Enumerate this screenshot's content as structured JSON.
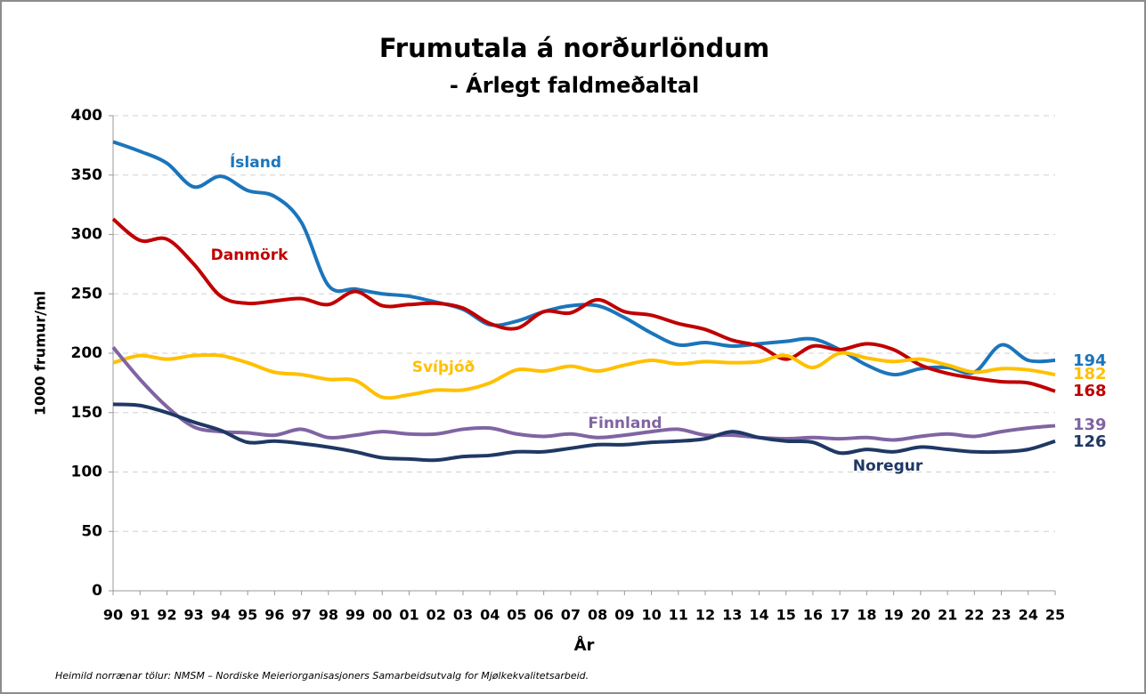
{
  "chart_data": {
    "type": "line",
    "title": "Frumutala á norðurlöndum",
    "subtitle": "- Árlegt faldmeðaltal",
    "y_label": "1000 frumur/ml",
    "x_label": "År",
    "footnote": "Heimild norrænar tölur: NMSM – Nordiske Meieriorganisasjoners Samarbeidsutvalg for Mjølkekvalitetsarbeid.",
    "categories": [
      "90",
      "91",
      "92",
      "93",
      "94",
      "95",
      "96",
      "97",
      "98",
      "99",
      "00",
      "01",
      "02",
      "03",
      "04",
      "05",
      "06",
      "07",
      "08",
      "09",
      "10",
      "11",
      "12",
      "13",
      "14",
      "15",
      "16",
      "17",
      "18",
      "19",
      "20",
      "21",
      "22",
      "23",
      "24",
      "25"
    ],
    "ylim": [
      0,
      400
    ],
    "yticks": [
      0,
      50,
      100,
      150,
      200,
      250,
      300,
      350,
      400
    ],
    "grid": true,
    "series": [
      {
        "name": "Ísland",
        "color": "#1b75bb",
        "end_label": "194",
        "values": [
          378,
          370,
          360,
          340,
          349,
          337,
          332,
          310,
          257,
          254,
          250,
          248,
          243,
          237,
          224,
          227,
          235,
          240,
          240,
          230,
          217,
          207,
          209,
          206,
          208,
          210,
          212,
          203,
          190,
          182,
          187,
          188,
          184,
          207,
          194,
          194
        ]
      },
      {
        "name": "Danmörk",
        "color": "#c00000",
        "end_label": "168",
        "values": [
          313,
          295,
          296,
          275,
          248,
          242,
          244,
          246,
          241,
          252,
          240,
          241,
          242,
          238,
          225,
          221,
          235,
          234,
          245,
          235,
          232,
          225,
          220,
          211,
          206,
          195,
          206,
          203,
          208,
          203,
          190,
          183,
          179,
          176,
          175,
          168
        ]
      },
      {
        "name": "Svíþjóð",
        "color": "#ffc000",
        "end_label": "182",
        "values": [
          192,
          198,
          195,
          198,
          198,
          192,
          184,
          182,
          178,
          177,
          163,
          165,
          169,
          169,
          175,
          186,
          185,
          189,
          185,
          190,
          194,
          191,
          193,
          192,
          193,
          198,
          188,
          200,
          196,
          193,
          195,
          190,
          184,
          187,
          186,
          182
        ]
      },
      {
        "name": "Finnland",
        "color": "#8064a2",
        "end_label": "139",
        "values": [
          205,
          178,
          155,
          138,
          134,
          133,
          131,
          136,
          129,
          131,
          134,
          132,
          132,
          136,
          137,
          132,
          130,
          132,
          129,
          131,
          134,
          136,
          131,
          131,
          129,
          128,
          129,
          128,
          129,
          127,
          130,
          132,
          130,
          134,
          137,
          139
        ]
      },
      {
        "name": "Noregur",
        "color": "#1f3864",
        "end_label": "126",
        "values": [
          157,
          156,
          150,
          142,
          135,
          125,
          126,
          124,
          121,
          117,
          112,
          111,
          110,
          113,
          114,
          117,
          117,
          120,
          123,
          123,
          125,
          126,
          128,
          134,
          129,
          126,
          125,
          116,
          119,
          117,
          121,
          119,
          117,
          117,
          119,
          126
        ]
      }
    ]
  }
}
